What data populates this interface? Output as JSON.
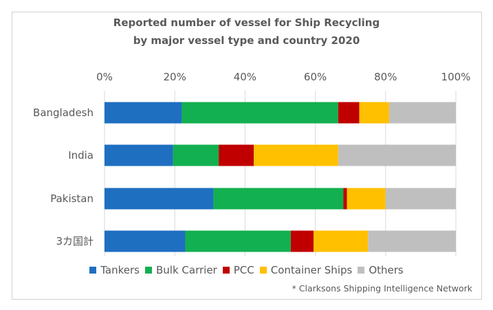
{
  "chart_data": {
    "type": "bar",
    "orientation": "horizontal",
    "stacked": "percent",
    "title_line1": "Reported number of vessel for Ship Recycling",
    "title_line2": "by major vessel type and country 2020",
    "categories": [
      "Bangladesh",
      "India",
      "Pakistan",
      "3カ国計"
    ],
    "xticks": [
      "0%",
      "20%",
      "40%",
      "60%",
      "80%",
      "100%"
    ],
    "xlim": [
      0,
      100
    ],
    "grid": "vertical",
    "legend_position": "bottom",
    "series": [
      {
        "name": "Tankers",
        "color": "#1f6fc0",
        "values": [
          22,
          19.5,
          31,
          23
        ]
      },
      {
        "name": "Bulk Carrier",
        "color": "#12b050",
        "values": [
          44.5,
          13,
          37,
          30
        ]
      },
      {
        "name": "PCC",
        "color": "#c00000",
        "values": [
          6,
          10,
          1,
          6.5
        ]
      },
      {
        "name": "Container Ships",
        "color": "#ffc000",
        "values": [
          8.5,
          24,
          11,
          15.5
        ]
      },
      {
        "name": "Others",
        "color": "#bfbfbf",
        "values": [
          19,
          33.5,
          20,
          25
        ]
      }
    ],
    "source_note": "* Clarksons Shipping Intelligence Network"
  }
}
